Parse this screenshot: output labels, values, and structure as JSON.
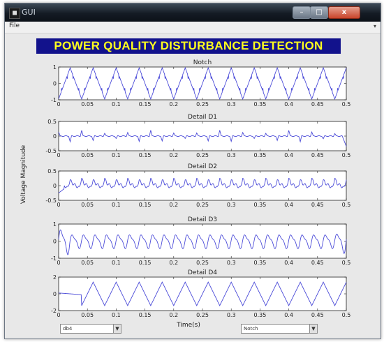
{
  "window": {
    "title": "GUI",
    "minimize": "–",
    "maximize": "□",
    "close": "x"
  },
  "menu": {
    "file_label": "File",
    "overflow": "▾"
  },
  "header": {
    "title": "POWER QUALITY DISTURBANCE DETECTION"
  },
  "colors": {
    "header_bg": "#12128c",
    "header_text": "#ffff1e",
    "signal": "#4a4ad8"
  },
  "ylabel": "Voltage Magnitude",
  "xlabel": "Time(s)",
  "controls": {
    "wavelet_dropdown": {
      "value": "db4"
    },
    "disturbance_dropdown": {
      "value": "Notch"
    }
  },
  "chart_data": [
    {
      "type": "line",
      "title": "Notch",
      "x_range": [
        0,
        0.5
      ],
      "ylim": [
        -1,
        1
      ],
      "y_ticks": [
        "1",
        "0",
        "-1"
      ],
      "x_ticks": [
        "0",
        "0.05",
        "0.1",
        "0.15",
        "0.2",
        "0.25",
        "0.3",
        "0.35",
        "0.4",
        "0.45",
        "0.5"
      ],
      "signal": {
        "kind": "triangle",
        "frequency_hz": 25,
        "amplitude": 0.95,
        "notch_depth": 0.4
      }
    },
    {
      "type": "line",
      "title": "Detail D1",
      "x_range": [
        0,
        0.5
      ],
      "ylim": [
        -0.5,
        0.5
      ],
      "y_ticks": [
        "0.5",
        "0",
        "-0.5"
      ],
      "x_ticks": [
        "0",
        "0.05",
        "0.1",
        "0.15",
        "0.2",
        "0.25",
        "0.3",
        "0.35",
        "0.4",
        "0.45",
        "0.5"
      ],
      "signal": {
        "kind": "spikes",
        "interval_s": 0.02,
        "amplitude": 0.2,
        "last_spike": -0.35
      }
    },
    {
      "type": "line",
      "title": "Detail D2",
      "x_range": [
        0,
        0.5
      ],
      "ylim": [
        -0.5,
        0.5
      ],
      "y_ticks": [
        "0.5",
        "0",
        "-0.5"
      ],
      "x_ticks": [
        "0",
        "0.05",
        "0.1",
        "0.15",
        "0.2",
        "0.25",
        "0.3",
        "0.35",
        "0.4",
        "0.45",
        "0.5"
      ],
      "signal": {
        "kind": "spiky-oscillation",
        "interval_s": 0.02,
        "amplitude": 0.25
      }
    },
    {
      "type": "line",
      "title": "Detail D3",
      "x_range": [
        0,
        0.5
      ],
      "ylim": [
        -1,
        1
      ],
      "y_ticks": [
        "1",
        "0",
        "-1"
      ],
      "x_ticks": [
        "0",
        "0.05",
        "0.1",
        "0.15",
        "0.2",
        "0.25",
        "0.3",
        "0.35",
        "0.4",
        "0.45",
        "0.5"
      ],
      "signal": {
        "kind": "oscillation",
        "frequency_hz": 50,
        "amplitude": 0.35
      }
    },
    {
      "type": "line",
      "title": "Detail D4",
      "x_range": [
        0,
        0.5
      ],
      "ylim": [
        -2,
        2
      ],
      "y_ticks": [
        "2",
        "0",
        "-2"
      ],
      "x_ticks": [
        "0",
        "0.05",
        "0.1",
        "0.15",
        "0.2",
        "0.25",
        "0.3",
        "0.35",
        "0.4",
        "0.45",
        "0.5"
      ],
      "signal": {
        "kind": "zigzag",
        "frequency_hz": 25,
        "amplitude": 1.4
      }
    }
  ]
}
